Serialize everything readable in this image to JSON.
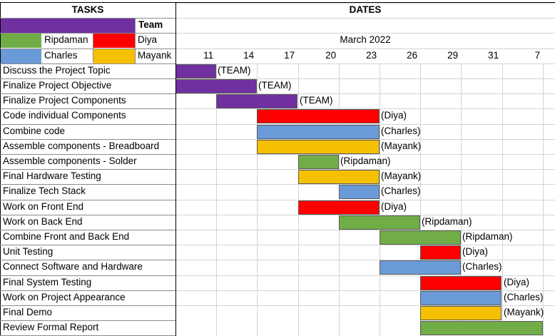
{
  "sheet": {
    "tasks_header": "TASKS",
    "dates_header": "DATES",
    "team_label": "Team",
    "month": "March 2022"
  },
  "legend": [
    {
      "name": "Ripdaman",
      "color": "#70ad47"
    },
    {
      "name": "Diya",
      "color": "#ff0000"
    },
    {
      "name": "Charles",
      "color": "#6a9bd8"
    },
    {
      "name": "Mayank",
      "color": "#f5c000"
    }
  ],
  "team_color": "#7030a0",
  "chart_data": {
    "type": "gantt",
    "x_ticks": [
      "11",
      "14",
      "17",
      "20",
      "23",
      "26",
      "29",
      "31",
      "7"
    ],
    "tasks": [
      {
        "name": "Discuss the Project Topic",
        "owner": "TEAM",
        "label": "(TEAM)",
        "start": "11",
        "end": "14"
      },
      {
        "name": "Finalize Project Objective",
        "owner": "TEAM",
        "label": "(TEAM)",
        "start": "11",
        "end": "17"
      },
      {
        "name": "Finalize Project Components",
        "owner": "TEAM",
        "label": "(TEAM)",
        "start": "14",
        "end": "20"
      },
      {
        "name": "Code individual Components",
        "owner": "Diya",
        "label": "(Diya)",
        "start": "17",
        "end": "26"
      },
      {
        "name": "Combine code",
        "owner": "Charles",
        "label": "(Charles)",
        "start": "17",
        "end": "26"
      },
      {
        "name": "Assemble components - Breadboard",
        "owner": "Mayank",
        "label": "(Mayank)",
        "start": "17",
        "end": "26"
      },
      {
        "name": "Assemble components - Solder",
        "owner": "Ripdaman",
        "label": "(Ripdaman)",
        "start": "20",
        "end": "23"
      },
      {
        "name": "Final Hardware Testing",
        "owner": "Mayank",
        "label": "(Mayank)",
        "start": "20",
        "end": "26"
      },
      {
        "name": "Finalize Tech Stack",
        "owner": "Charles",
        "label": "(Charles)",
        "start": "23",
        "end": "26"
      },
      {
        "name": "Work on Front End",
        "owner": "Diya",
        "label": "(Diya)",
        "start": "20",
        "end": "26"
      },
      {
        "name": "Work on Back End",
        "owner": "Ripdaman",
        "label": "(Ripdaman)",
        "start": "23",
        "end": "29"
      },
      {
        "name": "Combine Front and Back End",
        "owner": "Ripdaman",
        "label": "(Ripdaman)",
        "start": "26",
        "end": "31"
      },
      {
        "name": "Unit Testing",
        "owner": "Diya",
        "label": "(Diya)",
        "start": "29",
        "end": "31"
      },
      {
        "name": "Connect Software and Hardware",
        "owner": "Charles",
        "label": "(Charles)",
        "start": "26",
        "end": "31"
      },
      {
        "name": "Final System Testing",
        "owner": "Diya",
        "label": "(Diya)",
        "start": "29",
        "end": "7"
      },
      {
        "name": "Work on Project Appearance",
        "owner": "Charles",
        "label": "(Charles)",
        "start": "29",
        "end": "7"
      },
      {
        "name": "Final Demo",
        "owner": "Mayank",
        "label": "(Mayank)",
        "start": "29",
        "end": "7"
      },
      {
        "name": "Review Formal Report",
        "owner": "Ripdaman",
        "label": "",
        "start": "29",
        "end": "8"
      }
    ]
  }
}
